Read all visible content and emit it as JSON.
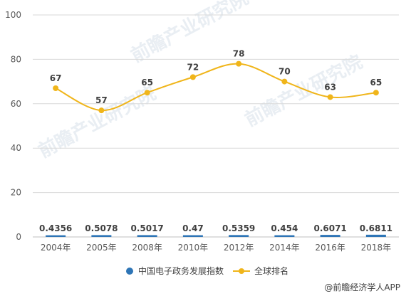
{
  "chart_data": {
    "type": "line",
    "categories": [
      "2004年",
      "2005年",
      "2008年",
      "2010年",
      "2012年",
      "2014年",
      "2016年",
      "2018年"
    ],
    "series": [
      {
        "name": "中国电子政务发展指数",
        "values": [
          0.4356,
          0.5078,
          0.5017,
          0.47,
          0.5359,
          0.454,
          0.6071,
          0.6811
        ],
        "labels": [
          "0.4356",
          "0.5078",
          "0.5017",
          "0.47",
          "0.5359",
          "0.454",
          "0.6071",
          "0.6811"
        ],
        "color": "#2e75b6"
      },
      {
        "name": "全球排名",
        "values": [
          67,
          57,
          65,
          72,
          78,
          70,
          63,
          65
        ],
        "labels": [
          "67",
          "57",
          "65",
          "72",
          "78",
          "70",
          "63",
          "65"
        ],
        "color": "#f0b51a"
      }
    ],
    "yticks": [
      "0",
      "20",
      "40",
      "60",
      "80",
      "100"
    ],
    "ylim": [
      0,
      100
    ],
    "grid": true,
    "legend": "bottom-center",
    "title": "",
    "xlabel": "",
    "ylabel": ""
  },
  "source_label": "@前瞻经济学人APP",
  "watermark": "前瞻产业研究院"
}
